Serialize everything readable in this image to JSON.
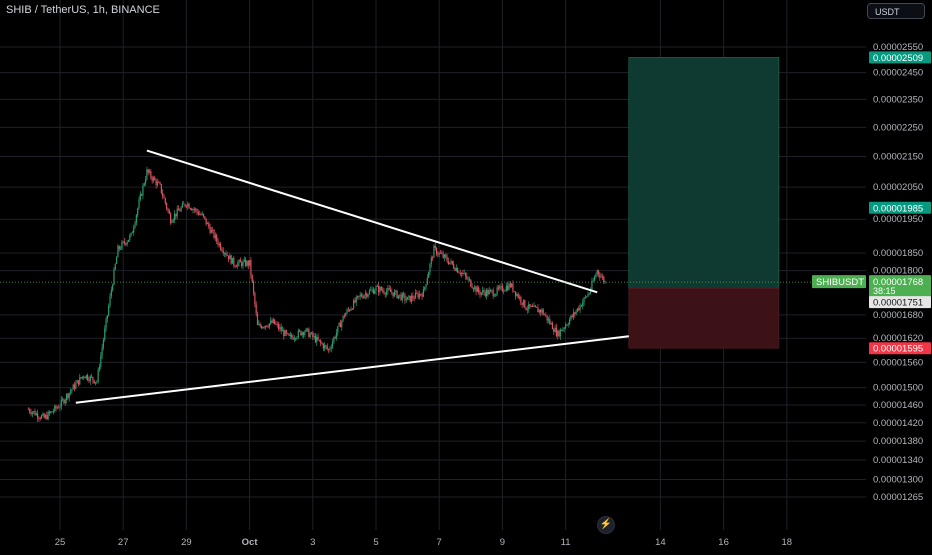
{
  "header": {
    "title": "SHIB / TetherUS, 1h, BINANCE",
    "currency": "USDT",
    "flash_icon": "lightning-icon"
  },
  "colors": {
    "background": "#000000",
    "grid": "#1f2129",
    "text": "#b2b5be",
    "up_candle": "#2a9d6f",
    "down_candle": "#e05260",
    "trendline": "#ffffff",
    "profit_zone": "#0e3a31",
    "loss_zone": "#3d1217",
    "target_badge": "#089981",
    "stop_badge": "#f23645",
    "last_price_badge": "#4caf50"
  },
  "chart_data": {
    "type": "candlestick",
    "symbol": "SHIBUSDT",
    "title": "SHIB / TetherUS, 1h, BINANCE",
    "ylim": [
      1.23e-05,
      2.59e-05
    ],
    "y_scale": "log",
    "y_ticks": [
      "0.00002550",
      "0.00002450",
      "0.00002350",
      "0.00002250",
      "0.00002150",
      "0.00002050",
      "0.00001950",
      "0.00001850",
      "0.00001800",
      "0.00001680",
      "0.00001620",
      "0.00001560",
      "0.00001500",
      "0.00001460",
      "0.00001420",
      "0.00001380",
      "0.00001340",
      "0.00001300",
      "0.00001265"
    ],
    "x_ticks": [
      "25",
      "27",
      "29",
      "Oct",
      "3",
      "5",
      "7",
      "9",
      "11",
      "14",
      "16",
      "18"
    ],
    "price_path": [
      [
        "Sep 24 00:00",
        1.45e-05
      ],
      [
        "Sep 24 12:00",
        1.43e-05
      ],
      [
        "Sep 25 00:00",
        1.46e-05
      ],
      [
        "Sep 25 06:00",
        1.485e-05
      ],
      [
        "Sep 25 18:00",
        1.53e-05
      ],
      [
        "Sep 26 04:00",
        1.515e-05
      ],
      [
        "Sep 26 12:00",
        1.68e-05
      ],
      [
        "Sep 26 20:00",
        1.86e-05
      ],
      [
        "Sep 27 06:00",
        1.9e-05
      ],
      [
        "Sep 27 18:00",
        2.1e-05
      ],
      [
        "Sep 28 04:00",
        2.05e-05
      ],
      [
        "Sep 28 12:00",
        1.95e-05
      ],
      [
        "Sep 29 00:00",
        2e-05
      ],
      [
        "Sep 29 12:00",
        1.96e-05
      ],
      [
        "Sep 30 00:00",
        1.88e-05
      ],
      [
        "Sep 30 12:00",
        1.82e-05
      ],
      [
        "Oct 1 00:00",
        1.82e-05
      ],
      [
        "Oct 1 06:00",
        1.65e-05
      ],
      [
        "Oct 1 18:00",
        1.66e-05
      ],
      [
        "Oct 2 06:00",
        1.62e-05
      ],
      [
        "Oct 2 18:00",
        1.64e-05
      ],
      [
        "Oct 3 12:00",
        1.59e-05
      ],
      [
        "Oct 4 00:00",
        1.68e-05
      ],
      [
        "Oct 4 12:00",
        1.73e-05
      ],
      [
        "Oct 5 00:00",
        1.75e-05
      ],
      [
        "Oct 5 12:00",
        1.74e-05
      ],
      [
        "Oct 6 00:00",
        1.72e-05
      ],
      [
        "Oct 6 12:00",
        1.74e-05
      ],
      [
        "Oct 6 20:00",
        1.86e-05
      ],
      [
        "Oct 7 06:00",
        1.83e-05
      ],
      [
        "Oct 7 18:00",
        1.79e-05
      ],
      [
        "Oct 8 06:00",
        1.74e-05
      ],
      [
        "Oct 8 18:00",
        1.74e-05
      ],
      [
        "Oct 9 06:00",
        1.76e-05
      ],
      [
        "Oct 9 18:00",
        1.7e-05
      ],
      [
        "Oct 10 06:00",
        1.69e-05
      ],
      [
        "Oct 10 18:00",
        1.63e-05
      ],
      [
        "Oct 11 06:00",
        1.68e-05
      ],
      [
        "Oct 11 18:00",
        1.74e-05
      ],
      [
        "Oct 12 00:00",
        1.8e-05
      ],
      [
        "Oct 12 06:00",
        1.768e-05
      ]
    ],
    "trendlines": [
      {
        "name": "descending-resistance",
        "from": [
          "Sep 27 18:00",
          2.17e-05
        ],
        "to": [
          "Oct 12 00:00",
          1.74e-05
        ]
      },
      {
        "name": "ascending-support",
        "from": [
          "Sep 25 12:00",
          1.465e-05
        ],
        "to": [
          "Oct 13 00:00",
          1.625e-05
        ]
      }
    ],
    "position": {
      "type": "long",
      "start": "Oct 13 00:00",
      "end": "Oct 17 18:00",
      "entry": 1.751e-05,
      "target": 2.509e-05,
      "stop": 1.595e-05
    },
    "price_labels": {
      "target": "0.00002509",
      "level": "0.00001985",
      "symbol_tag": "SHIBUSDT",
      "last_price": "0.00001768",
      "countdown": "38:15",
      "entry": "0.00001751",
      "stop": "0.00001595"
    }
  }
}
